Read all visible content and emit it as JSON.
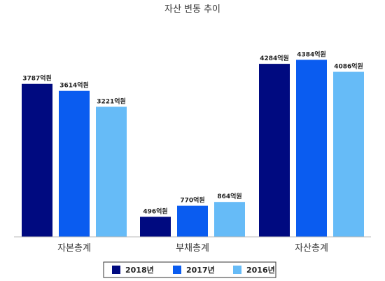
{
  "chart_data": {
    "type": "bar",
    "title": "자산 변동 추이",
    "categories": [
      "자본총계",
      "부채총계",
      "자산총계"
    ],
    "series": [
      {
        "name": "2018년",
        "color": "#000a80",
        "values": [
          3787,
          496,
          4284
        ],
        "labels": [
          "3787억원",
          "496억원",
          "4284억원"
        ]
      },
      {
        "name": "2017년",
        "color": "#0a5cf0",
        "values": [
          3614,
          770,
          4384
        ],
        "labels": [
          "3614억원",
          "770억원",
          "4384억원"
        ]
      },
      {
        "name": "2016년",
        "color": "#66bbf7",
        "values": [
          3221,
          864,
          4086
        ],
        "labels": [
          "3221억원",
          "864억원",
          "4086억원"
        ]
      }
    ],
    "ylim": [
      0,
      4650
    ],
    "grid": false,
    "legend": "bottom"
  }
}
